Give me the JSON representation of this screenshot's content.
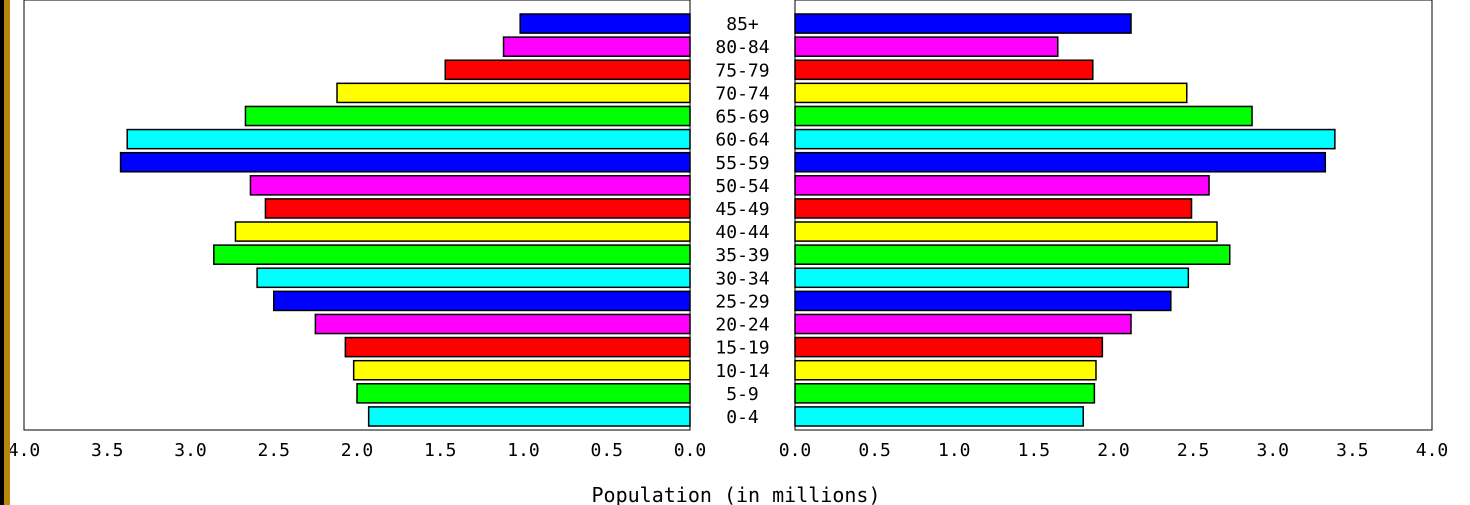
{
  "chart_data": {
    "type": "bar",
    "orientation": "horizontal-pyramid",
    "categories": [
      "85+",
      "80-84",
      "75-79",
      "70-74",
      "65-69",
      "60-64",
      "55-59",
      "50-54",
      "45-49",
      "40-44",
      "35-39",
      "30-34",
      "25-29",
      "20-24",
      "15-19",
      "10-14",
      "5-9",
      "0-4"
    ],
    "series": [
      {
        "side": "left",
        "values": [
          1.02,
          1.12,
          1.47,
          2.12,
          2.67,
          3.38,
          3.42,
          2.64,
          2.55,
          2.73,
          2.86,
          2.6,
          2.5,
          2.25,
          2.07,
          2.02,
          2.0,
          1.93
        ]
      },
      {
        "side": "right",
        "values": [
          2.11,
          1.65,
          1.87,
          2.46,
          2.87,
          3.39,
          3.33,
          2.6,
          2.49,
          2.65,
          2.73,
          2.47,
          2.36,
          2.11,
          1.93,
          1.89,
          1.88,
          1.81
        ]
      }
    ],
    "bar_colors": [
      "#0000ff",
      "#ff00ff",
      "#ff0000",
      "#ffff00",
      "#00ff00",
      "#00ffff",
      "#0000ff",
      "#ff00ff",
      "#ff0000",
      "#ffff00",
      "#00ff00",
      "#00ffff",
      "#0000ff",
      "#ff00ff",
      "#ff0000",
      "#ffff00",
      "#00ff00",
      "#00ffff"
    ],
    "xlim": [
      0,
      4.0
    ],
    "xticks_left": [
      "4.0",
      "3.5",
      "3.0",
      "2.5",
      "2.0",
      "1.5",
      "1.0",
      "0.5",
      "0.0"
    ],
    "xticks_right": [
      "0.0",
      "0.5",
      "1.0",
      "1.5",
      "2.0",
      "2.5",
      "3.0",
      "3.5",
      "4.0"
    ],
    "xlabel": "Population (in millions)",
    "grid": false
  }
}
